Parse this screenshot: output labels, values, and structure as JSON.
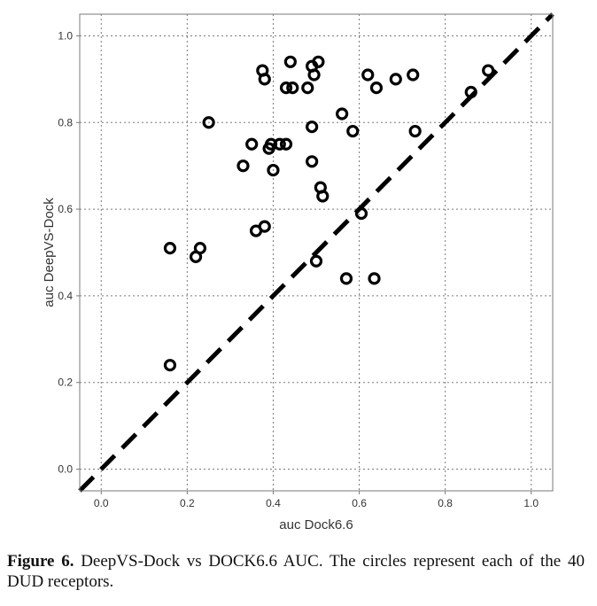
{
  "chart_data": {
    "type": "scatter",
    "xlabel": "auc Dock6.6",
    "ylabel": "auc DeepVS-Dock",
    "xlim": [
      -0.05,
      1.05
    ],
    "ylim": [
      -0.05,
      1.05
    ],
    "x_ticks": [
      "0.0",
      "0.2",
      "0.4",
      "0.6",
      "0.8",
      "1.0"
    ],
    "y_ticks": [
      "0.0",
      "0.2",
      "0.4",
      "0.6",
      "0.8",
      "1.0"
    ],
    "grid": true,
    "marker": "open-circle",
    "reference_line": {
      "type": "identity",
      "style": "dashed",
      "from": [
        -0.05,
        -0.05
      ],
      "to": [
        1.05,
        1.05
      ]
    },
    "points": [
      {
        "x": 0.16,
        "y": 0.24
      },
      {
        "x": 0.16,
        "y": 0.51
      },
      {
        "x": 0.22,
        "y": 0.49
      },
      {
        "x": 0.23,
        "y": 0.51
      },
      {
        "x": 0.25,
        "y": 0.8
      },
      {
        "x": 0.33,
        "y": 0.7
      },
      {
        "x": 0.35,
        "y": 0.75
      },
      {
        "x": 0.36,
        "y": 0.55
      },
      {
        "x": 0.38,
        "y": 0.56
      },
      {
        "x": 0.375,
        "y": 0.92
      },
      {
        "x": 0.38,
        "y": 0.9
      },
      {
        "x": 0.39,
        "y": 0.74
      },
      {
        "x": 0.395,
        "y": 0.75
      },
      {
        "x": 0.4,
        "y": 0.69
      },
      {
        "x": 0.415,
        "y": 0.75
      },
      {
        "x": 0.43,
        "y": 0.75
      },
      {
        "x": 0.43,
        "y": 0.88
      },
      {
        "x": 0.44,
        "y": 0.94
      },
      {
        "x": 0.445,
        "y": 0.88
      },
      {
        "x": 0.48,
        "y": 0.88
      },
      {
        "x": 0.49,
        "y": 0.79
      },
      {
        "x": 0.49,
        "y": 0.71
      },
      {
        "x": 0.49,
        "y": 0.93
      },
      {
        "x": 0.495,
        "y": 0.91
      },
      {
        "x": 0.5,
        "y": 0.48
      },
      {
        "x": 0.505,
        "y": 0.94
      },
      {
        "x": 0.51,
        "y": 0.65
      },
      {
        "x": 0.515,
        "y": 0.63
      },
      {
        "x": 0.56,
        "y": 0.82
      },
      {
        "x": 0.57,
        "y": 0.44
      },
      {
        "x": 0.585,
        "y": 0.78
      },
      {
        "x": 0.605,
        "y": 0.59
      },
      {
        "x": 0.62,
        "y": 0.91
      },
      {
        "x": 0.635,
        "y": 0.44
      },
      {
        "x": 0.64,
        "y": 0.88
      },
      {
        "x": 0.685,
        "y": 0.9
      },
      {
        "x": 0.725,
        "y": 0.91
      },
      {
        "x": 0.73,
        "y": 0.78
      },
      {
        "x": 0.86,
        "y": 0.87
      },
      {
        "x": 0.9,
        "y": 0.92
      }
    ]
  },
  "caption": {
    "label": "Figure 6.",
    "text": " DeepVS-Dock vs DOCK6.6 AUC. The circles represent each of the 40 DUD receptors."
  }
}
